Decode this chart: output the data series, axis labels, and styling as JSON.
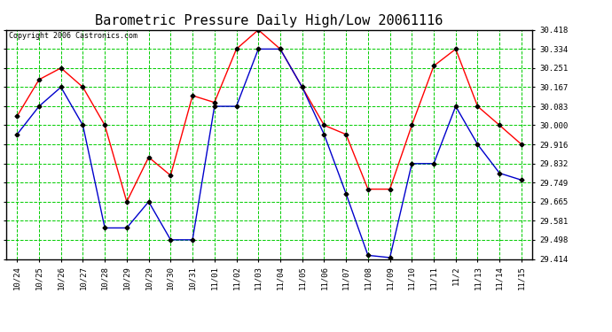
{
  "title": "Barometric Pressure Daily High/Low 20061116",
  "copyright": "Copyright 2006 Castronics.com",
  "x_labels": [
    "10/24",
    "10/25",
    "10/26",
    "10/27",
    "10/28",
    "10/29",
    "10/29",
    "10/30",
    "10/31",
    "11/01",
    "11/02",
    "11/03",
    "11/04",
    "11/05",
    "11/06",
    "11/07",
    "11/08",
    "11/09",
    "11/10",
    "11/11",
    "11/2",
    "11/13",
    "11/14",
    "11/15"
  ],
  "high_values": [
    30.04,
    30.2,
    30.251,
    30.167,
    30.0,
    29.665,
    29.86,
    29.78,
    30.13,
    30.1,
    30.334,
    30.418,
    30.334,
    30.167,
    30.0,
    29.96,
    29.72,
    29.72,
    30.0,
    30.26,
    30.334,
    30.083,
    30.0,
    29.916
  ],
  "low_values": [
    29.96,
    30.083,
    30.167,
    30.0,
    29.55,
    29.55,
    29.665,
    29.498,
    29.498,
    30.083,
    30.083,
    30.334,
    30.334,
    30.167,
    29.96,
    29.7,
    29.43,
    29.42,
    29.832,
    29.832,
    30.083,
    29.916,
    29.79,
    29.76
  ],
  "high_color": "#FF0000",
  "low_color": "#0000CC",
  "marker_color": "#000000",
  "bg_color": "#FFFFFF",
  "grid_color": "#00CC00",
  "title_color": "#000000",
  "copyright_color": "#000000",
  "yticks": [
    29.414,
    29.498,
    29.581,
    29.665,
    29.749,
    29.832,
    29.916,
    30.0,
    30.083,
    30.167,
    30.251,
    30.334,
    30.418
  ],
  "ylim": [
    29.414,
    30.418
  ],
  "title_fontsize": 11,
  "copyright_fontsize": 6,
  "tick_fontsize": 6.5
}
